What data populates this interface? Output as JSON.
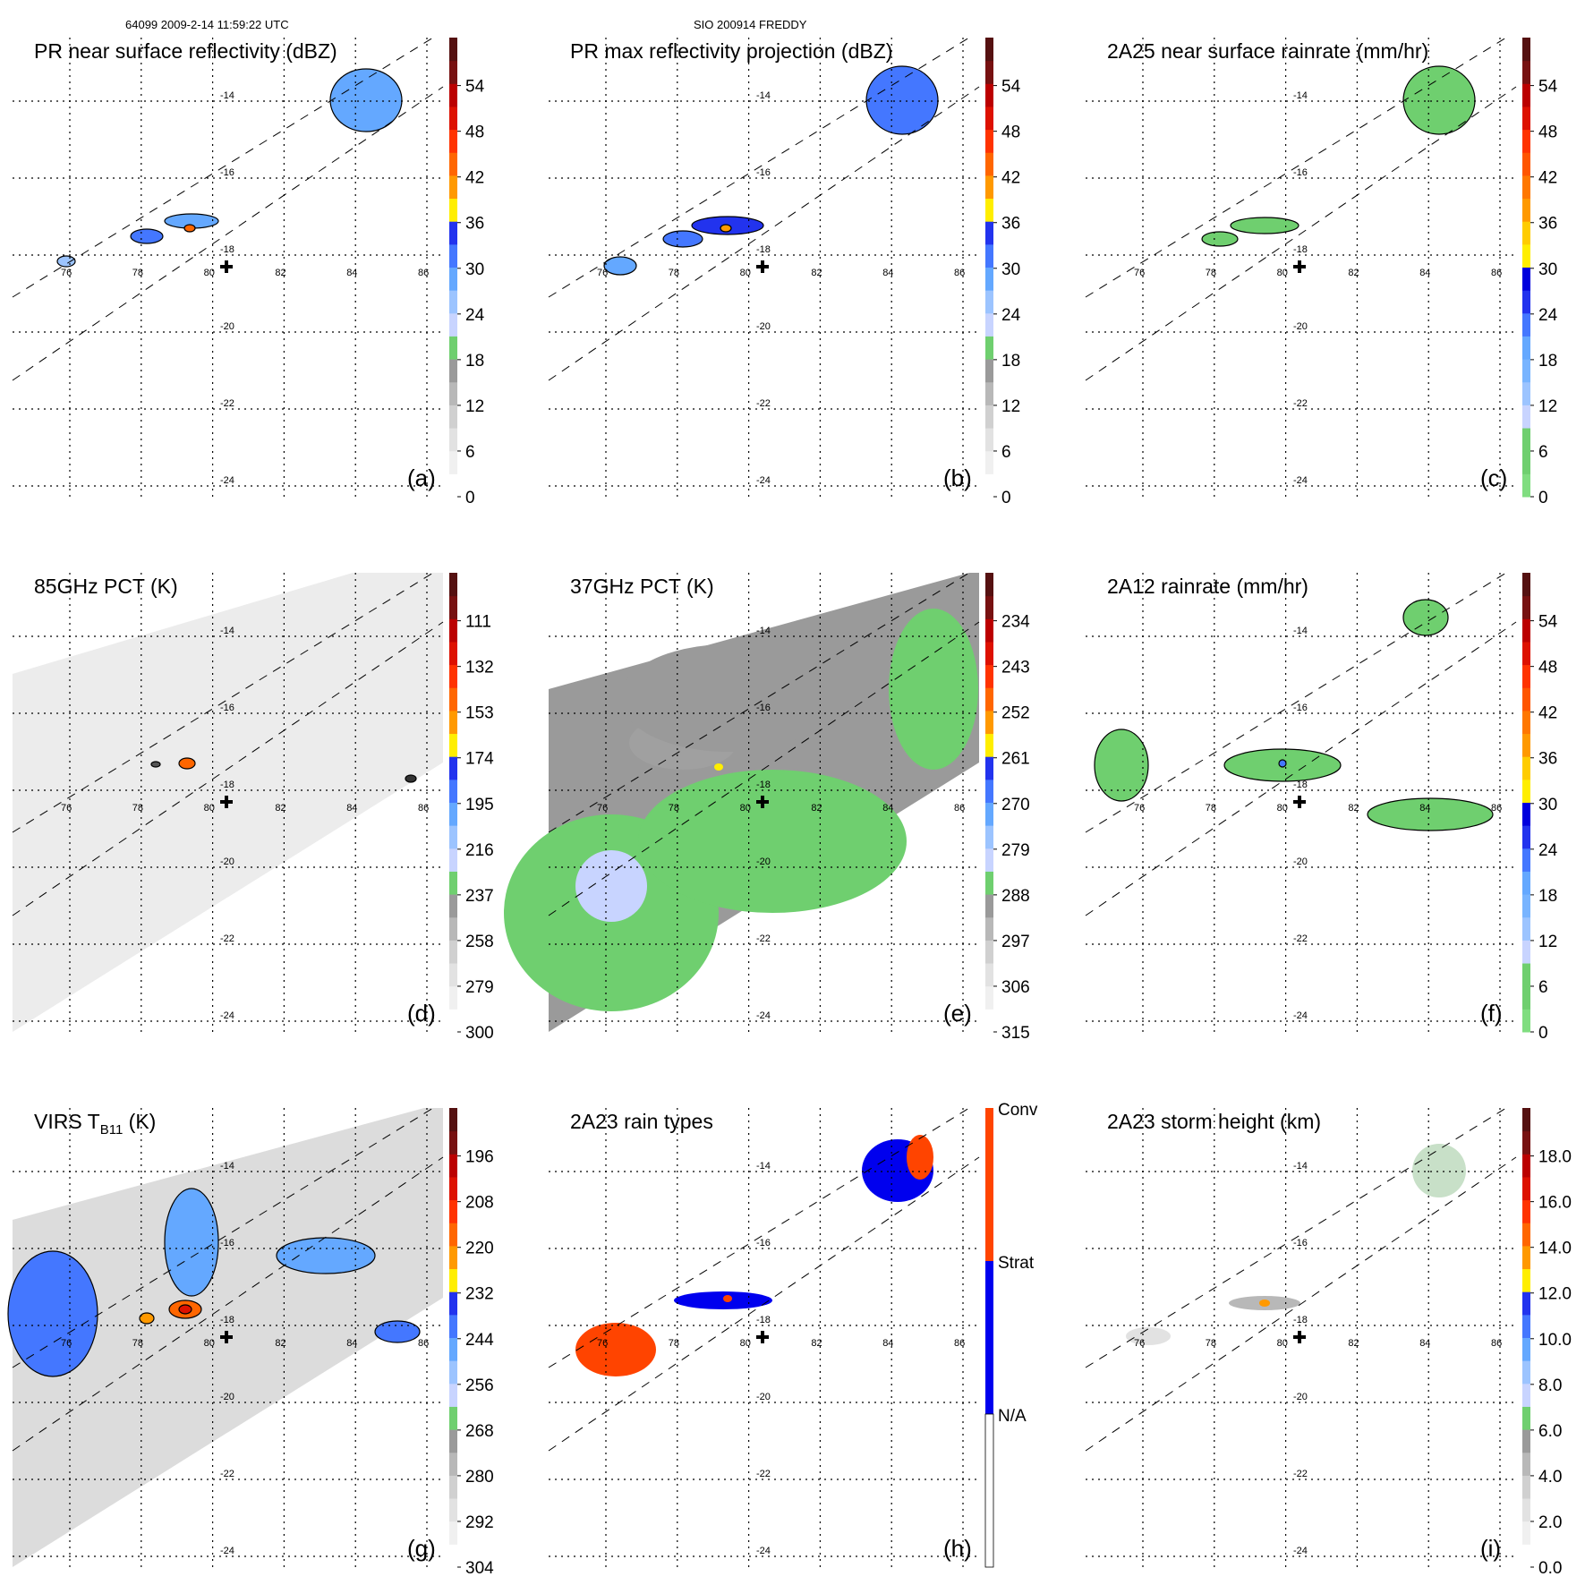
{
  "header": {
    "left": "64099 2009-2-14 11:59:22 UTC",
    "center": "SIO 200914 FREDDY"
  },
  "axes": {
    "lon_labels": [
      "76",
      "78",
      "80",
      "82",
      "84",
      "86"
    ],
    "lat_labels": [
      "-14",
      "-16",
      "-18",
      "-20",
      "-22",
      "-24"
    ]
  },
  "colors": {
    "grid": "#000000",
    "contour": "#000000"
  },
  "chart_data": [
    {
      "id": "a",
      "type": "heatmap",
      "title": "PR near surface reflectivity (dBZ)",
      "label": "(a)",
      "ticks": [
        "0",
        "6",
        "12",
        "18",
        "24",
        "30",
        "36",
        "42",
        "48",
        "54"
      ],
      "bins": [
        "#ffffff",
        "#f0f0f0",
        "#e2e2e2",
        "#d0d0d0",
        "#b8b8b8",
        "#9a9a9a",
        "#6fcf6f",
        "#c8d4ff",
        "#9cc4ff",
        "#64a8ff",
        "#4477ff",
        "#2233ee",
        "#ffee00",
        "#ff9900",
        "#ff6600",
        "#ff3300",
        "#dd1100",
        "#bb0000",
        "#771111",
        "#551111"
      ]
    },
    {
      "id": "b",
      "type": "heatmap",
      "title": "PR max reflectivity projection (dBZ)",
      "label": "(b)",
      "ticks": [
        "0",
        "6",
        "12",
        "18",
        "24",
        "30",
        "36",
        "42",
        "48",
        "54"
      ],
      "bins": [
        "#ffffff",
        "#f0f0f0",
        "#e2e2e2",
        "#d0d0d0",
        "#b8b8b8",
        "#9a9a9a",
        "#6fcf6f",
        "#c8d4ff",
        "#9cc4ff",
        "#64a8ff",
        "#4477ff",
        "#2233ee",
        "#ffee00",
        "#ff9900",
        "#ff6600",
        "#ff3300",
        "#dd1100",
        "#bb0000",
        "#771111",
        "#551111"
      ]
    },
    {
      "id": "c",
      "type": "heatmap",
      "title": "2A25 near surface rainrate (mm/hr)",
      "label": "(c)",
      "ticks": [
        "0",
        "6",
        "12",
        "18",
        "24",
        "30",
        "36",
        "42",
        "48",
        "54"
      ],
      "bins": [
        "#80dd80",
        "#6fcf6f",
        "#6fcf6f",
        "#c8d4ff",
        "#9cc4ff",
        "#78b4ff",
        "#64a8ff",
        "#4477ff",
        "#2233ee",
        "#0000dd",
        "#ffee00",
        "#ffcc00",
        "#ff9900",
        "#ff7700",
        "#ff5500",
        "#ff3300",
        "#dd1100",
        "#bb0000",
        "#771111",
        "#551111"
      ]
    },
    {
      "id": "d",
      "type": "heatmap",
      "title": "85GHz PCT (K)",
      "label": "(d)",
      "ticks": [
        "300",
        "279",
        "258",
        "237",
        "216",
        "195",
        "174",
        "153",
        "132",
        "111"
      ],
      "bins": [
        "#ffffff",
        "#f0f0f0",
        "#e2e2e2",
        "#d0d0d0",
        "#b8b8b8",
        "#9a9a9a",
        "#6fcf6f",
        "#c8d4ff",
        "#9cc4ff",
        "#64a8ff",
        "#4477ff",
        "#2233ee",
        "#ffee00",
        "#ff9900",
        "#ff6600",
        "#ff3300",
        "#dd1100",
        "#bb0000",
        "#771111",
        "#551111"
      ]
    },
    {
      "id": "e",
      "type": "heatmap",
      "title": "37GHz PCT (K)",
      "label": "(e)",
      "ticks": [
        "315",
        "306",
        "297",
        "288",
        "279",
        "270",
        "261",
        "252",
        "243",
        "234"
      ],
      "bins": [
        "#ffffff",
        "#f0f0f0",
        "#e2e2e2",
        "#d0d0d0",
        "#b8b8b8",
        "#9a9a9a",
        "#6fcf6f",
        "#c8d4ff",
        "#9cc4ff",
        "#64a8ff",
        "#4477ff",
        "#2233ee",
        "#ffee00",
        "#ff9900",
        "#ff6600",
        "#ff3300",
        "#dd1100",
        "#bb0000",
        "#771111",
        "#551111"
      ]
    },
    {
      "id": "f",
      "type": "heatmap",
      "title": "2A12 rainrate (mm/hr)",
      "label": "(f)",
      "ticks": [
        "0",
        "6",
        "12",
        "18",
        "24",
        "30",
        "36",
        "42",
        "48",
        "54"
      ],
      "bins": [
        "#80dd80",
        "#6fcf6f",
        "#6fcf6f",
        "#c8d4ff",
        "#9cc4ff",
        "#78b4ff",
        "#64a8ff",
        "#4477ff",
        "#2233ee",
        "#0000dd",
        "#ffee00",
        "#ffcc00",
        "#ff9900",
        "#ff7700",
        "#ff5500",
        "#ff3300",
        "#dd1100",
        "#bb0000",
        "#771111",
        "#551111"
      ]
    },
    {
      "id": "g",
      "type": "heatmap",
      "title": "VIRS T",
      "title_sub": "B11",
      "title_end": " (K)",
      "label": "(g)",
      "ticks": [
        "304",
        "292",
        "280",
        "268",
        "256",
        "244",
        "232",
        "220",
        "208",
        "196"
      ],
      "bins": [
        "#ffffff",
        "#f0f0f0",
        "#e2e2e2",
        "#d0d0d0",
        "#b8b8b8",
        "#9a9a9a",
        "#6fcf6f",
        "#c8d4ff",
        "#9cc4ff",
        "#64a8ff",
        "#4477ff",
        "#2233ee",
        "#ffee00",
        "#ff9900",
        "#ff6600",
        "#ff3300",
        "#dd1100",
        "#bb0000",
        "#771111",
        "#551111"
      ]
    },
    {
      "id": "h",
      "type": "heatmap",
      "title": "2A23 rain types",
      "label": "(h)",
      "categories": [
        "Conv",
        "Strat",
        "N/A"
      ],
      "category_colors": [
        "#ff4400",
        "#0000ee",
        "#ffffff"
      ]
    },
    {
      "id": "i",
      "type": "heatmap",
      "title": "2A23 storm height (km)",
      "label": "(i)",
      "ticks": [
        "0.0",
        "2.0",
        "4.0",
        "6.0",
        "8.0",
        "10.0",
        "12.0",
        "14.0",
        "16.0",
        "18.0"
      ],
      "bins": [
        "#ffffff",
        "#f0f0f0",
        "#e2e2e2",
        "#d0d0d0",
        "#b8b8b8",
        "#9a9a9a",
        "#6fcf6f",
        "#c8d4ff",
        "#9cc4ff",
        "#64a8ff",
        "#4477ff",
        "#2233ee",
        "#ffee00",
        "#ff9900",
        "#ff6600",
        "#ff3300",
        "#dd1100",
        "#bb0000",
        "#771111",
        "#551111"
      ]
    }
  ]
}
